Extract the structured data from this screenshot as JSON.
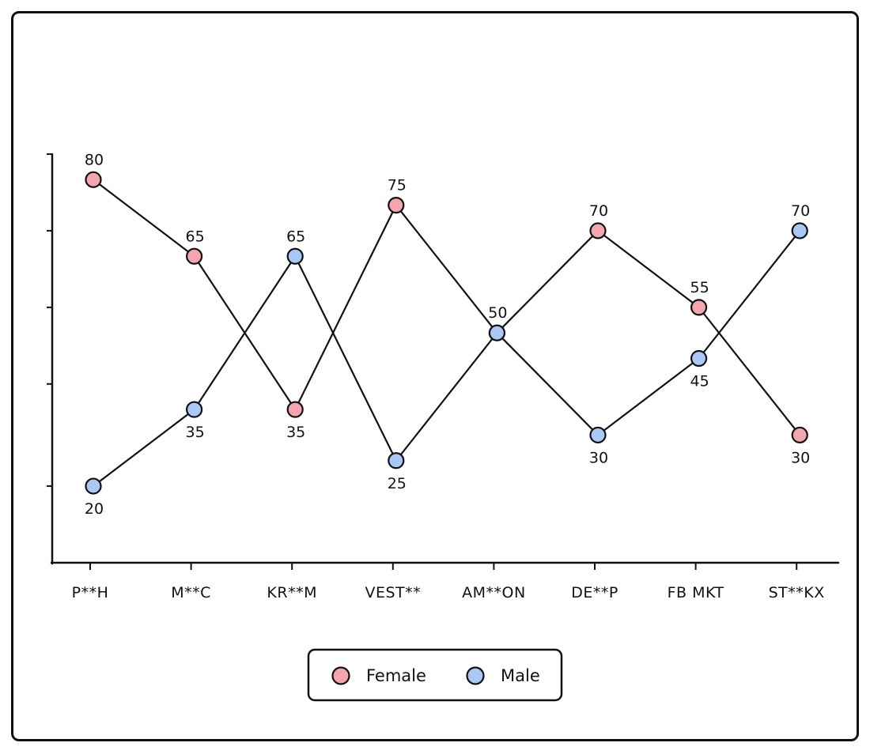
{
  "chart_data": {
    "type": "line",
    "categories": [
      "P**H",
      "M**C",
      "KR**M",
      "VEST**",
      "AM**ON",
      "DE**P",
      "FB MKT",
      "ST**KX"
    ],
    "series": [
      {
        "name": "Female",
        "color": "#f4a5ae",
        "values": [
          80,
          65,
          35,
          75,
          50,
          70,
          55,
          30
        ],
        "label_pos": [
          "above",
          "above",
          "below",
          "above",
          "above",
          "above",
          "above",
          "below"
        ]
      },
      {
        "name": "Male",
        "color": "#a9c8f5",
        "values": [
          20,
          35,
          65,
          25,
          50,
          30,
          45,
          70
        ],
        "label_pos": [
          "below",
          "below",
          "above",
          "below",
          "none",
          "below",
          "below",
          "above"
        ]
      }
    ],
    "ylim": [
      5,
      85
    ],
    "yticks": [
      20,
      40,
      55,
      70,
      85
    ],
    "title": "",
    "xlabel": "",
    "ylabel": "",
    "legend": "bottom-center",
    "grid": false
  }
}
